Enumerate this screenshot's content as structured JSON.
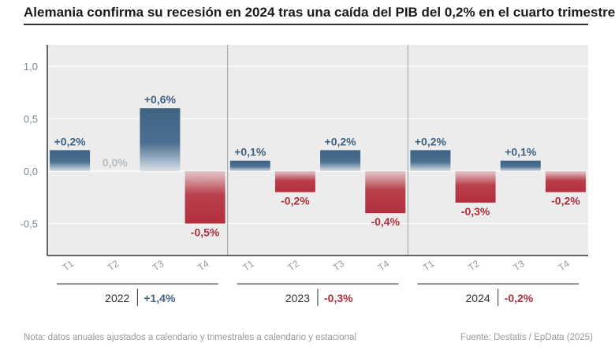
{
  "title": "Alemania confirma su recesión en 2024 tras una caída del PIB del 0,2% en el cuarto trimestre",
  "note": "Nota: datos anuales ajustados a calendario y trimestrales a calendario y estacional",
  "source": "Fuente: Destatis / EpData (2025)",
  "colors": {
    "positive": "#3f6383",
    "negative": "#b32f3d",
    "neutral": "#b7bcc2",
    "panel": "#ececec",
    "axis_text": "#7a8a96"
  },
  "chart_data": {
    "type": "bar",
    "title": "Alemania confirma su recesión en 2024 tras una caída del PIB del 0,2% en el cuarto trimestre",
    "ylim": [
      -0.8,
      1.2
    ],
    "yticks": [
      {
        "value": 1.0,
        "label": "1,0"
      },
      {
        "value": 0.5,
        "label": "0,5"
      },
      {
        "value": 0.0,
        "label": "0,0"
      },
      {
        "value": -0.5,
        "label": "-0,5"
      }
    ],
    "groups": [
      {
        "year": "2022",
        "annual": 1.4,
        "annual_label": "+1,4%",
        "quarters": [
          {
            "q": "T1",
            "value": 0.2,
            "label": "+0,2%"
          },
          {
            "q": "T2",
            "value": 0.0,
            "label": "0,0%"
          },
          {
            "q": "T3",
            "value": 0.6,
            "label": "+0,6%"
          },
          {
            "q": "T4",
            "value": -0.5,
            "label": "-0,5%"
          }
        ]
      },
      {
        "year": "2023",
        "annual": -0.3,
        "annual_label": "-0,3%",
        "quarters": [
          {
            "q": "T1",
            "value": 0.1,
            "label": "+0,1%"
          },
          {
            "q": "T2",
            "value": -0.2,
            "label": "-0,2%"
          },
          {
            "q": "T3",
            "value": 0.2,
            "label": "+0,2%"
          },
          {
            "q": "T4",
            "value": -0.4,
            "label": "-0,4%"
          }
        ]
      },
      {
        "year": "2024",
        "annual": -0.2,
        "annual_label": "-0,2%",
        "quarters": [
          {
            "q": "T1",
            "value": 0.2,
            "label": "+0,2%"
          },
          {
            "q": "T2",
            "value": -0.3,
            "label": "-0,3%"
          },
          {
            "q": "T3",
            "value": 0.1,
            "label": "+0,1%"
          },
          {
            "q": "T4",
            "value": -0.2,
            "label": "-0,2%"
          }
        ]
      }
    ]
  }
}
